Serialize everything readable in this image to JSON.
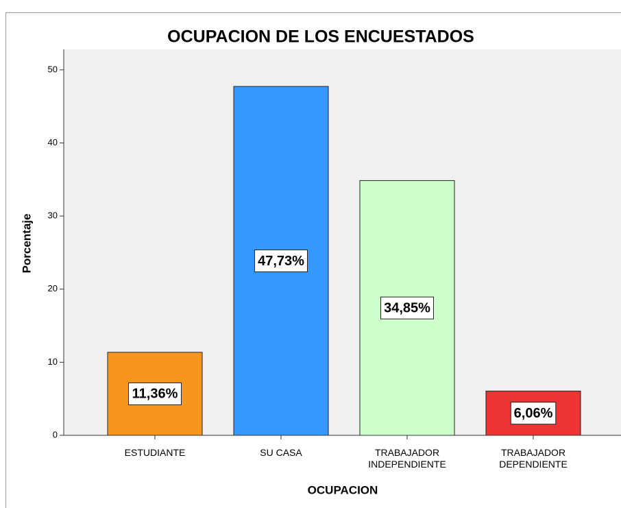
{
  "chart_data": {
    "type": "bar",
    "title": "OCUPACION DE LOS ENCUESTADOS",
    "x_label": "OCUPACION",
    "y_label": "Porcentaje",
    "categories": [
      "ESTUDIANTE",
      "SU CASA",
      "TRABAJADOR INDEPENDIENTE",
      "TRABAJADOR DEPENDIENTE"
    ],
    "values": [
      11.36,
      47.73,
      34.85,
      6.06
    ],
    "value_labels": [
      "11,36%",
      "47,73%",
      "34,85%",
      "6,06%"
    ],
    "colors": [
      "#f7961e",
      "#3399ff",
      "#ccffcc",
      "#ee3333"
    ],
    "ylim": [
      0,
      52.8
    ],
    "yticks": [
      0,
      10,
      20,
      30,
      40,
      50
    ]
  }
}
